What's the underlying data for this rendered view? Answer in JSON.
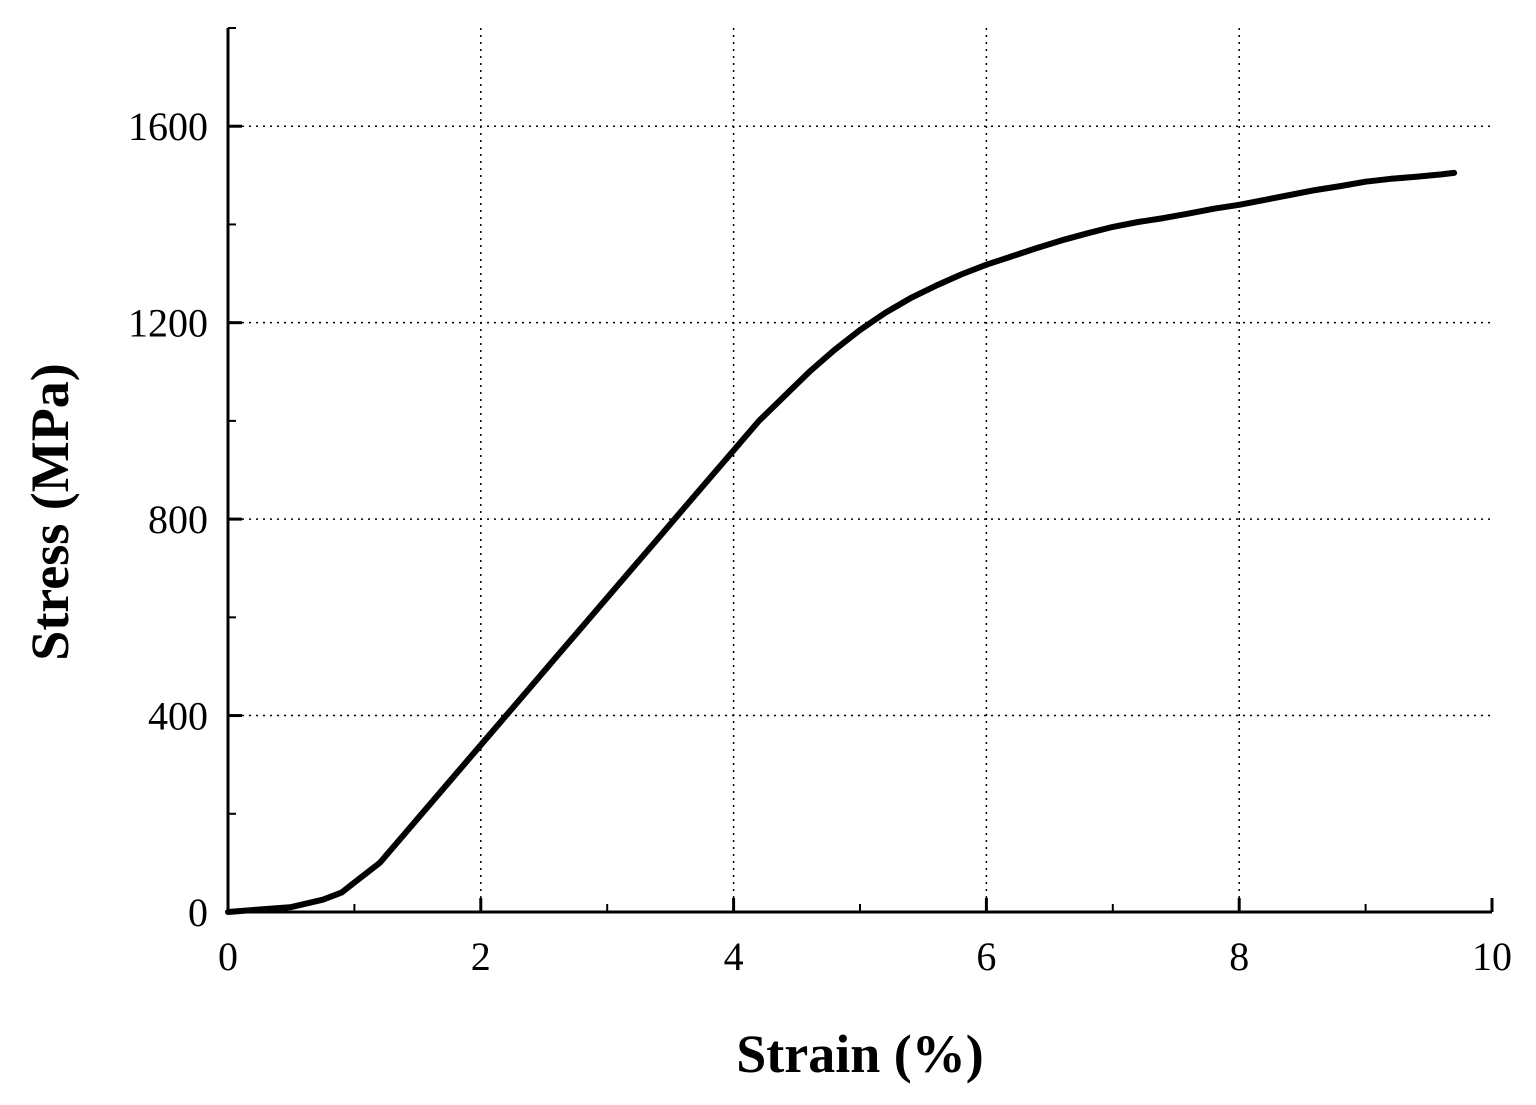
{
  "chart_data": {
    "type": "line",
    "xlabel": "Strain (%)",
    "ylabel": "Stress (MPa)",
    "xlim": [
      0,
      10
    ],
    "ylim": [
      0,
      1800
    ],
    "xticks": [
      0,
      2,
      4,
      6,
      8,
      10
    ],
    "xtick_labels": [
      "0",
      "2",
      "4",
      "6",
      "8",
      "10"
    ],
    "yticks": [
      0,
      400,
      800,
      1200,
      1600
    ],
    "ytick_labels": [
      "0",
      "400",
      "800",
      "1200",
      "1600"
    ],
    "x_minor_step": 1,
    "y_minor_step": 200,
    "grid": true,
    "series": [
      {
        "color": "#000000",
        "x": [
          0,
          0.25,
          0.5,
          0.75,
          0.9,
          1.0,
          1.2,
          1.4,
          1.6,
          1.8,
          2.0,
          2.2,
          2.4,
          2.6,
          2.8,
          3.0,
          3.2,
          3.4,
          3.6,
          3.8,
          4.0,
          4.2,
          4.4,
          4.6,
          4.8,
          5.0,
          5.2,
          5.4,
          5.6,
          5.8,
          6.0,
          6.2,
          6.4,
          6.6,
          6.8,
          7.0,
          7.2,
          7.4,
          7.6,
          7.8,
          8.0,
          8.2,
          8.4,
          8.6,
          8.8,
          9.0,
          9.2,
          9.4,
          9.6,
          9.7
        ],
        "y": [
          0,
          5,
          10,
          25,
          40,
          60,
          100,
          160,
          220,
          280,
          340,
          400,
          460,
          520,
          580,
          640,
          700,
          760,
          820,
          880,
          940,
          1000,
          1050,
          1100,
          1145,
          1185,
          1220,
          1250,
          1275,
          1298,
          1318,
          1335,
          1352,
          1368,
          1382,
          1395,
          1405,
          1413,
          1422,
          1432,
          1440,
          1450,
          1460,
          1470,
          1478,
          1487,
          1493,
          1497,
          1502,
          1505
        ]
      }
    ]
  }
}
